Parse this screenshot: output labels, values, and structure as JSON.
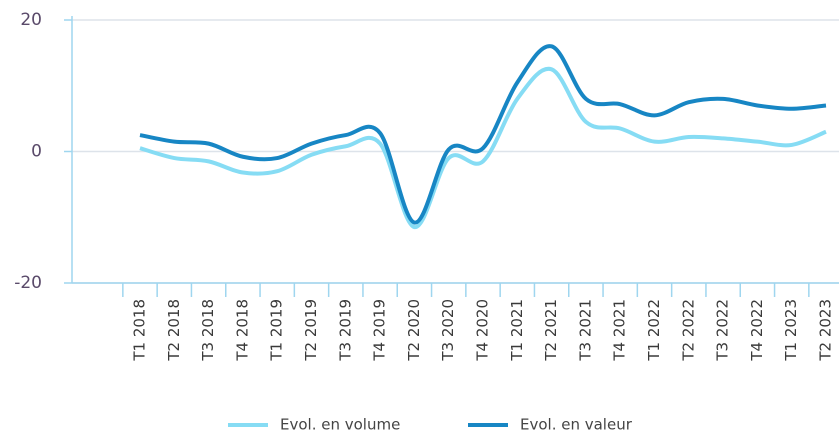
{
  "chart_data": {
    "type": "line",
    "categories": [
      "T1 2018",
      "T2 2018",
      "T3 2018",
      "T4 2018",
      "T1 2019",
      "T2 2019",
      "T3 2019",
      "T4 2019",
      "T2 2020",
      "T3 2020",
      "T4 2020",
      "T1 2021",
      "T2 2021",
      "T3 2021",
      "T4 2021",
      "T1 2022",
      "T2 2022",
      "T3 2022",
      "T4 2022",
      "T1 2023",
      "T2 2023"
    ],
    "series": [
      {
        "name": "Evol. en volume",
        "color": "#86dcf4",
        "values": [
          0.5,
          -1,
          -1.5,
          -3.2,
          -3,
          -0.5,
          0.8,
          1.2,
          -11.5,
          -1,
          -1.5,
          8,
          12.5,
          4.5,
          3.5,
          1.5,
          2.2,
          2,
          1.5,
          1,
          3
        ]
      },
      {
        "name": "Evol. en valeur",
        "color": "#1786c4",
        "values": [
          2.5,
          1.5,
          1.2,
          -0.8,
          -1,
          1.2,
          2.5,
          2.8,
          -10.8,
          0.3,
          0.5,
          10.5,
          16,
          8,
          7.2,
          5.5,
          7.5,
          8,
          7,
          6.5,
          7
        ]
      }
    ],
    "ylim": [
      -20,
      20
    ],
    "yticks": [
      -20,
      0,
      20
    ],
    "grid": true
  }
}
